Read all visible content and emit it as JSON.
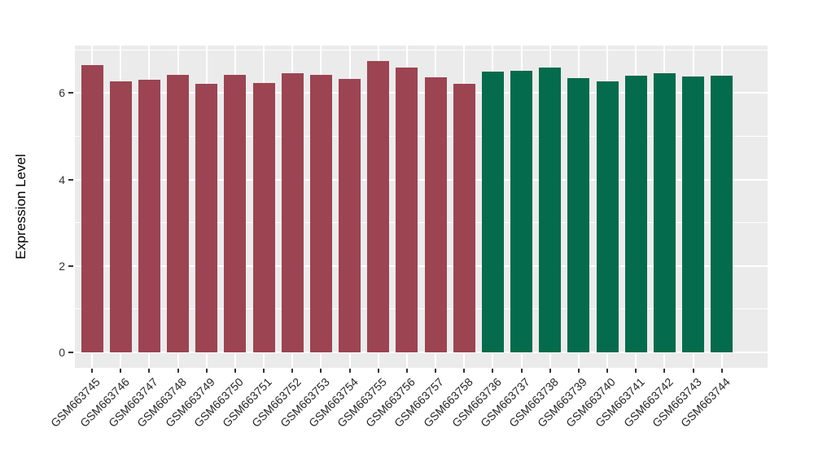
{
  "chart_data": {
    "type": "bar",
    "title": "",
    "xlabel": "",
    "ylabel": "Expression Level",
    "ylim": [
      0,
      7.09
    ],
    "yticks": [
      0,
      2,
      4,
      6
    ],
    "yticks_minor": [
      1,
      3,
      5,
      7
    ],
    "legend_position": "none",
    "grid": "white major and minor gridlines on gray panel",
    "categories": [
      "GSM663745",
      "GSM663746",
      "GSM663747",
      "GSM663748",
      "GSM663749",
      "GSM663750",
      "GSM663751",
      "GSM663752",
      "GSM663753",
      "GSM663754",
      "GSM663755",
      "GSM663756",
      "GSM663757",
      "GSM663758",
      "GSM663736",
      "GSM663737",
      "GSM663738",
      "GSM663739",
      "GSM663740",
      "GSM663741",
      "GSM663742",
      "GSM663743",
      "GSM663744"
    ],
    "values": [
      6.65,
      6.28,
      6.3,
      6.43,
      6.21,
      6.43,
      6.23,
      6.46,
      6.43,
      6.33,
      6.75,
      6.6,
      6.36,
      6.21,
      6.49,
      6.52,
      6.6,
      6.35,
      6.27,
      6.41,
      6.46,
      6.38,
      6.41
    ],
    "bar_groups": [
      "maroon_group",
      "maroon_group",
      "maroon_group",
      "maroon_group",
      "maroon_group",
      "maroon_group",
      "maroon_group",
      "maroon_group",
      "maroon_group",
      "maroon_group",
      "maroon_group",
      "maroon_group",
      "maroon_group",
      "maroon_group",
      "green_group",
      "green_group",
      "green_group",
      "green_group",
      "green_group",
      "green_group",
      "green_group",
      "green_group",
      "green_group"
    ],
    "group_colors": {
      "maroon_group": "#9C4452",
      "green_group": "#046B4C"
    }
  },
  "style": {
    "figure_background": "#FFFFFF",
    "panel_background": "#EBEBEB",
    "gridline_color": "#FFFFFF",
    "tick_color": "#333333",
    "axis_text_color": "#333333",
    "axis_title_color": "#000000"
  }
}
